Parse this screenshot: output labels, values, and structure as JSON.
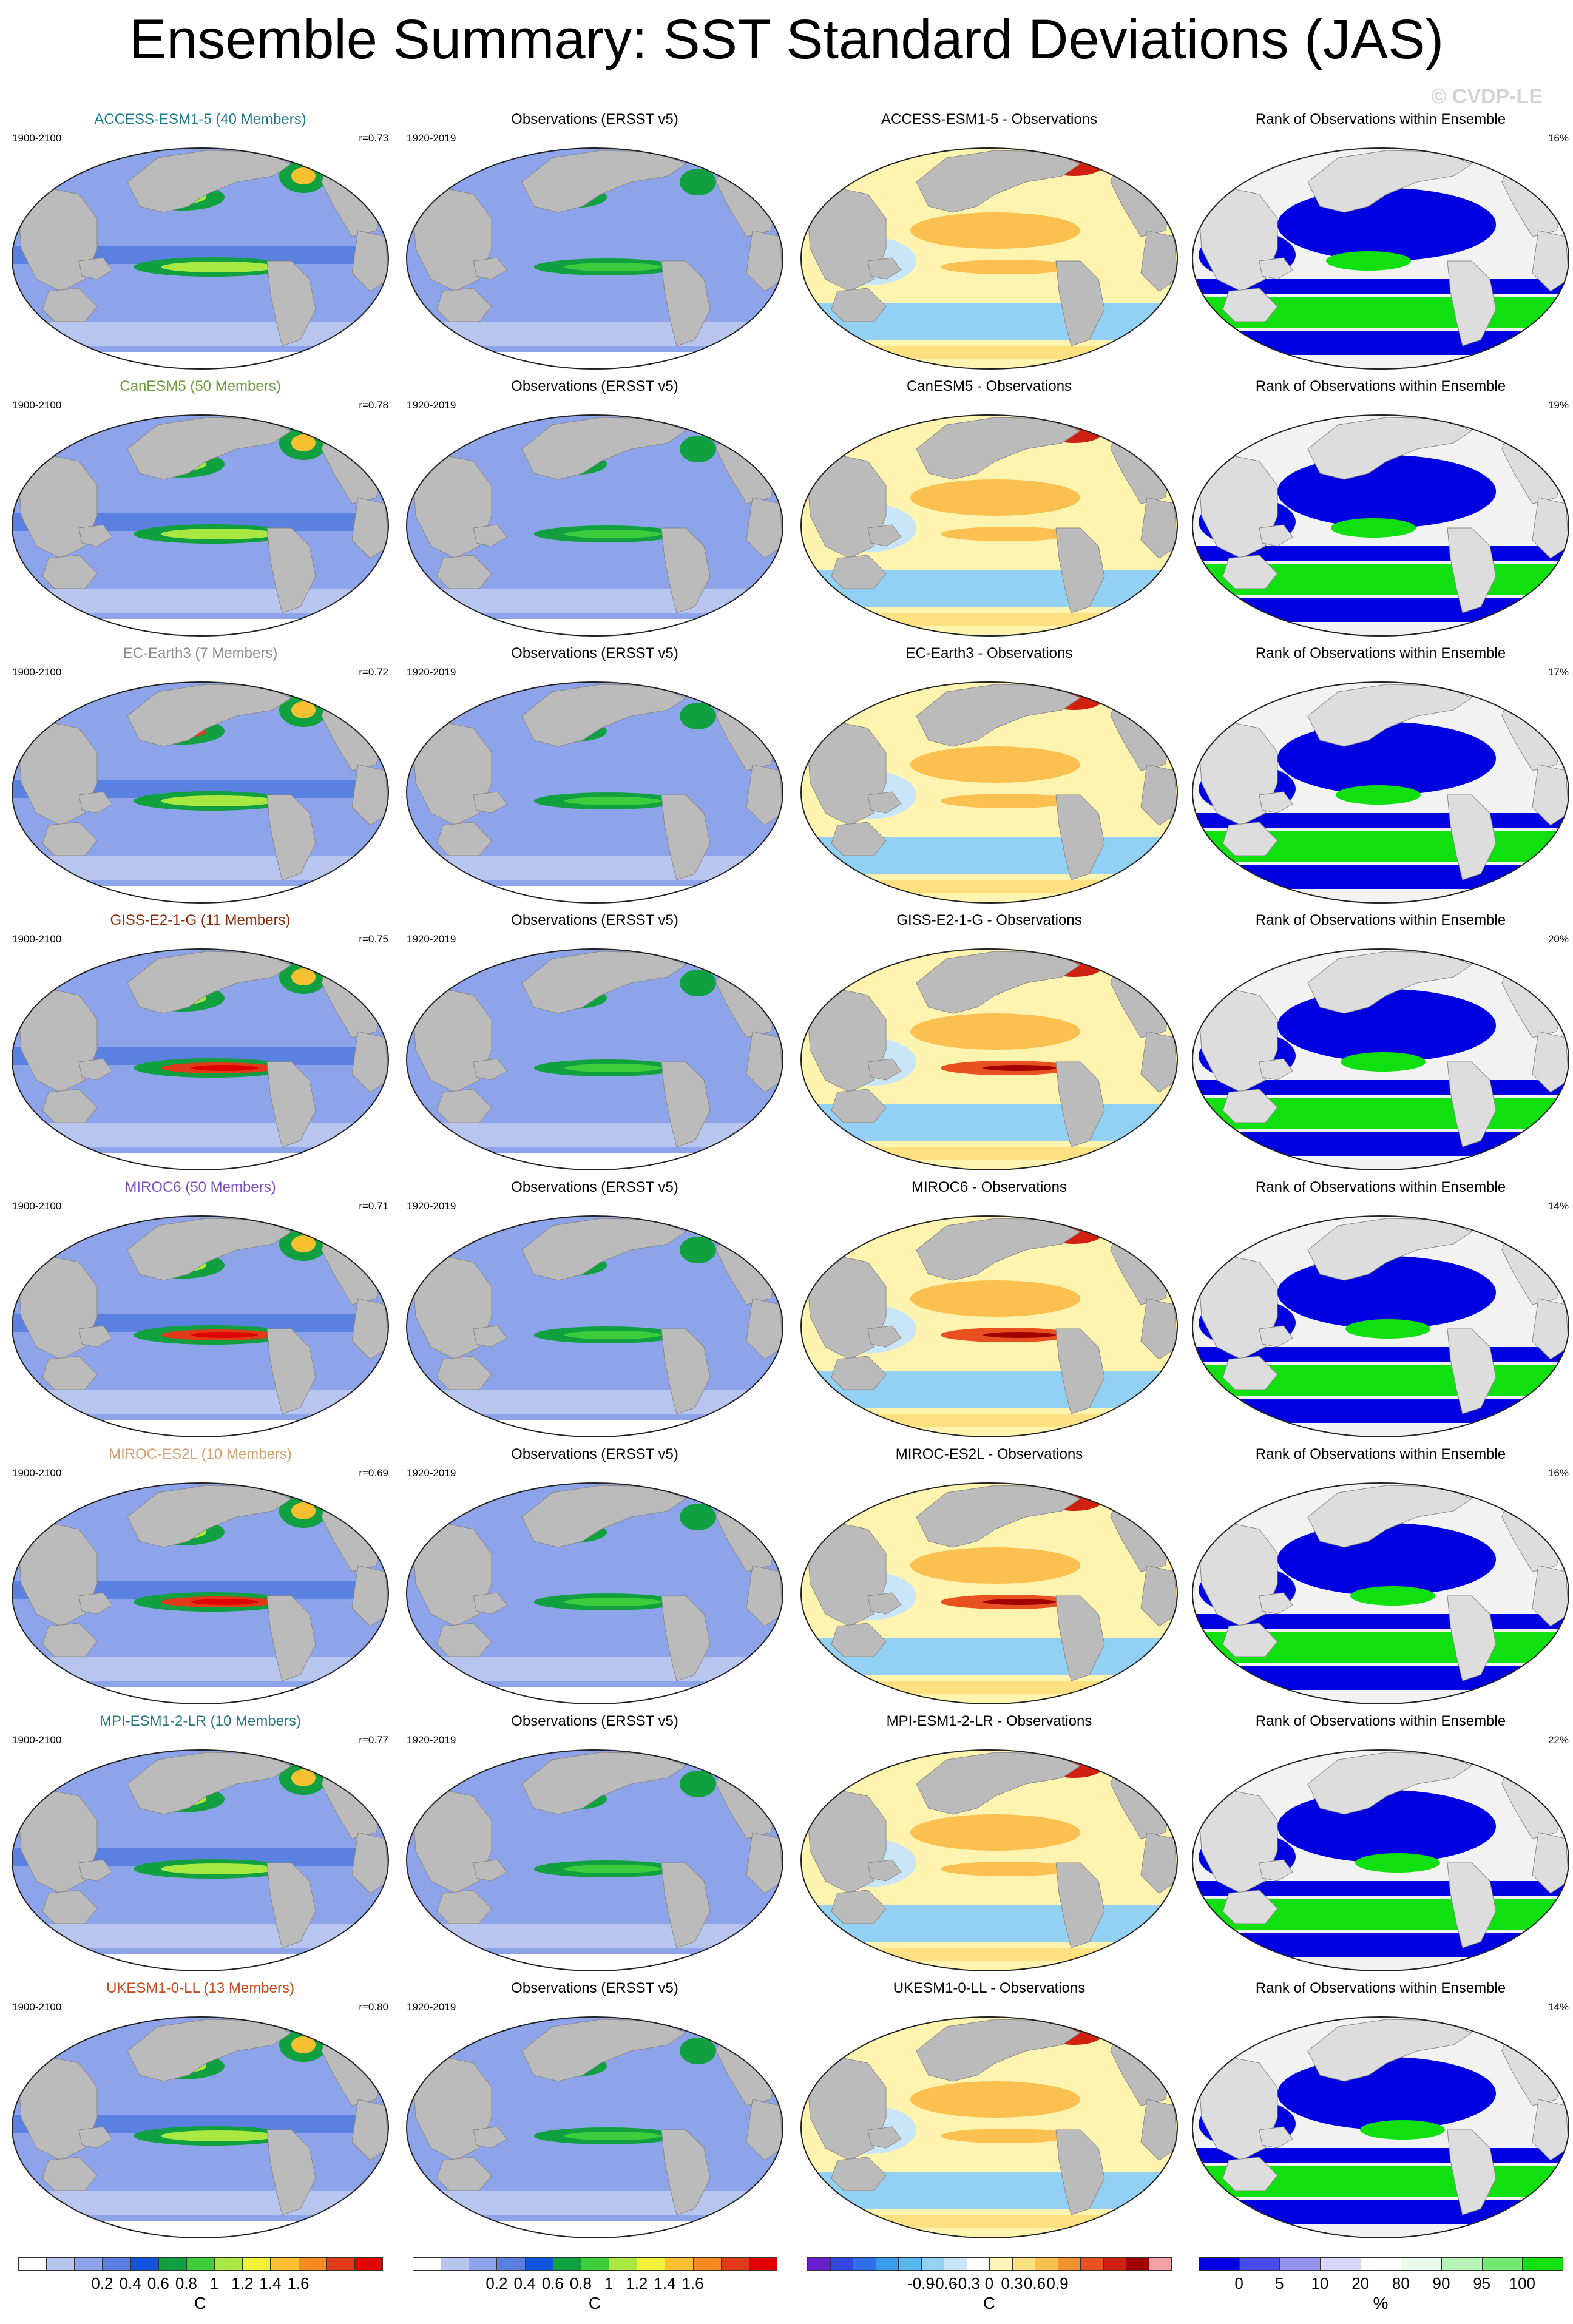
{
  "title": "Ensemble Summary: SST Standard Deviations (JAS)",
  "watermark": "© CVDP-LE",
  "rows": [
    {
      "model_title": "ACCESS-ESM1-5 (40 Members)",
      "model_color": "#1c7a8c",
      "model_years": "1900-2100",
      "r": "r=0.73",
      "obs_title": "Observations (ERSST v5)",
      "obs_years": "1920-2019",
      "diff_title": "ACCESS-ESM1-5 - Observations",
      "rank_title": "Rank of Observations within Ensemble",
      "rank_pct": "16%"
    },
    {
      "model_title": "CanESM5 (50 Members)",
      "model_color": "#6b9a3a",
      "model_years": "1900-2100",
      "r": "r=0.78",
      "obs_title": "Observations (ERSST v5)",
      "obs_years": "1920-2019",
      "diff_title": "CanESM5 - Observations",
      "rank_title": "Rank of Observations within Ensemble",
      "rank_pct": "19%"
    },
    {
      "model_title": "EC-Earth3 (7 Members)",
      "model_color": "#8a8a8a",
      "model_years": "1900-2100",
      "r": "r=0.72",
      "obs_title": "Observations (ERSST v5)",
      "obs_years": "1920-2019",
      "diff_title": "EC-Earth3 - Observations",
      "rank_title": "Rank of Observations within Ensemble",
      "rank_pct": "17%"
    },
    {
      "model_title": "GISS-E2-1-G (11 Members)",
      "model_color": "#8b2a0a",
      "model_years": "1900-2100",
      "r": "r=0.75",
      "obs_title": "Observations (ERSST v5)",
      "obs_years": "1920-2019",
      "diff_title": "GISS-E2-1-G - Observations",
      "rank_title": "Rank of Observations within Ensemble",
      "rank_pct": "20%"
    },
    {
      "model_title": "MIROC6 (50 Members)",
      "model_color": "#7b4fc4",
      "model_years": "1900-2100",
      "r": "r=0.71",
      "obs_title": "Observations (ERSST v5)",
      "obs_years": "1920-2019",
      "diff_title": "MIROC6 - Observations",
      "rank_title": "Rank of Observations within Ensemble",
      "rank_pct": "14%"
    },
    {
      "model_title": "MIROC-ES2L (10 Members)",
      "model_color": "#d4a070",
      "model_years": "1900-2100",
      "r": "r=0.69",
      "obs_title": "Observations (ERSST v5)",
      "obs_years": "1920-2019",
      "diff_title": "MIROC-ES2L - Observations",
      "rank_title": "Rank of Observations within Ensemble",
      "rank_pct": "16%"
    },
    {
      "model_title": "MPI-ESM1-2-LR (10 Members)",
      "model_color": "#2a7a80",
      "model_years": "1900-2100",
      "r": "r=0.77",
      "obs_title": "Observations (ERSST v5)",
      "obs_years": "1920-2019",
      "diff_title": "MPI-ESM1-2-LR - Observations",
      "rank_title": "Rank of Observations within Ensemble",
      "rank_pct": "22%"
    },
    {
      "model_title": "UKESM1-0-LL (13 Members)",
      "model_color": "#c84a1a",
      "model_years": "1900-2100",
      "r": "r=0.80",
      "obs_title": "Observations (ERSST v5)",
      "obs_years": "1920-2019",
      "diff_title": "UKESM1-0-LL - Observations",
      "rank_title": "Rank of Observations within Ensemble",
      "rank_pct": "14%"
    }
  ],
  "colorbars": {
    "sst": {
      "colors": [
        "#ffffff",
        "#b7c5ef",
        "#8da3ea",
        "#5a80e0",
        "#1155dd",
        "#10a040",
        "#3ccc3c",
        "#a8e840",
        "#f2f23a",
        "#f8c030",
        "#f58a20",
        "#e03a1a",
        "#e00000"
      ],
      "labels": [
        "0.2",
        "0.4",
        "0.6",
        "0.8",
        "1",
        "1.2",
        "1.4",
        "1.6"
      ],
      "unit": "C"
    },
    "diff": {
      "colors": [
        "#6a1fd0",
        "#3346e0",
        "#2f6ee8",
        "#3a9aee",
        "#58b8f0",
        "#92d0f4",
        "#c8e6f8",
        "#ffffff",
        "#fff6b8",
        "#fde080",
        "#fbc050",
        "#f59030",
        "#e85020",
        "#d02010",
        "#a00000",
        "#f4a0a8"
      ],
      "labels": [
        "-0.9",
        "-0.6",
        "-0.3",
        "0",
        "0.3",
        "0.6",
        "0.9"
      ],
      "unit": "C"
    },
    "rank": {
      "colors": [
        "#0000e0",
        "#4a4ae8",
        "#9494ee",
        "#d6d6f6",
        "#ffffff",
        "#e8fbe8",
        "#b8f4b8",
        "#72ea72",
        "#10e010"
      ],
      "labels": [
        "0",
        "5",
        "10",
        "20",
        "80",
        "90",
        "95",
        "100"
      ],
      "unit": "%"
    }
  }
}
